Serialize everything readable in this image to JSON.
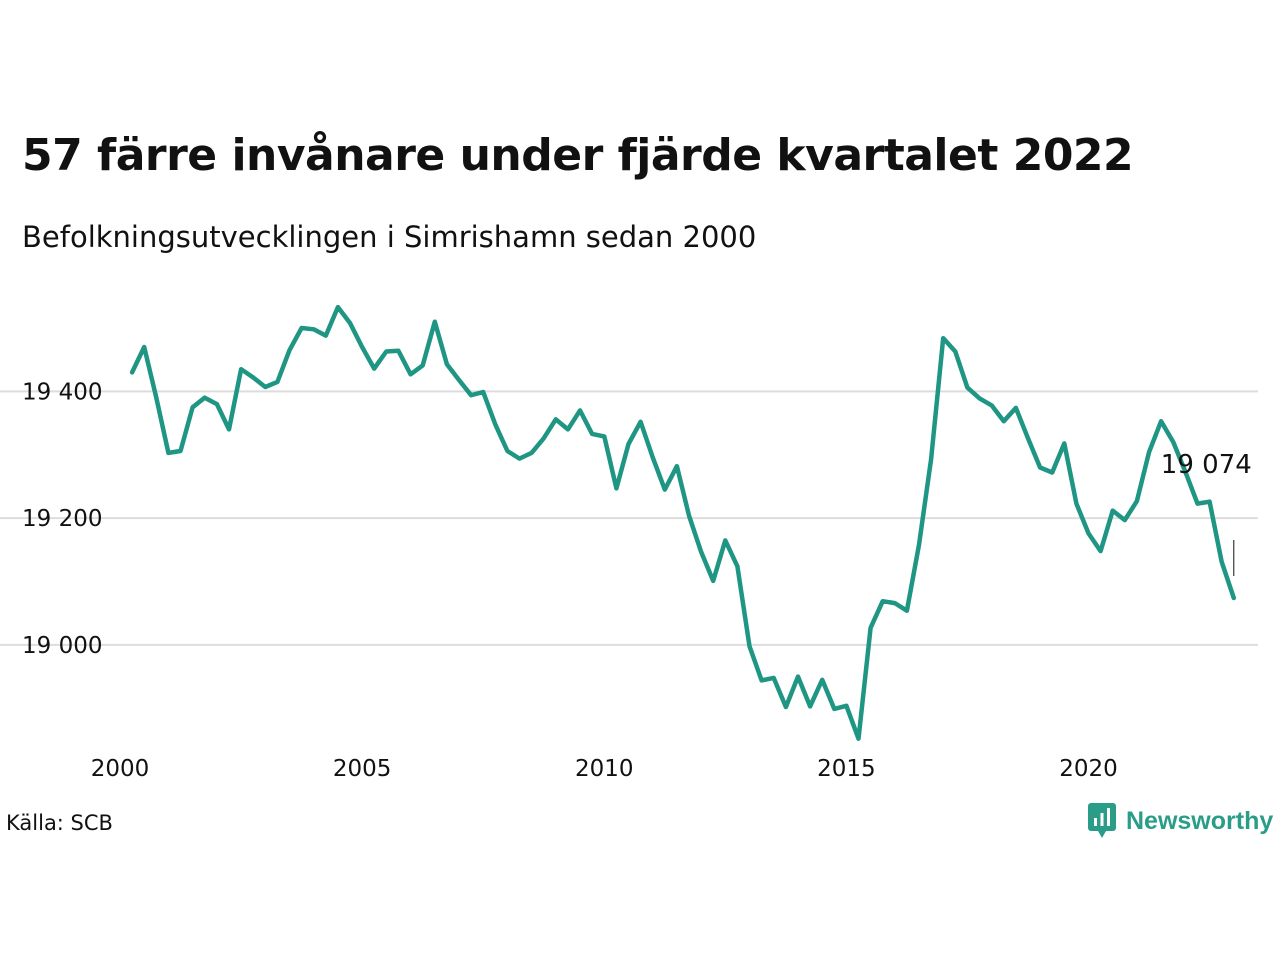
{
  "title": "57 färre invånare under fjärde kvartalet 2022",
  "subtitle": "Befolkningsutvecklingen i Simrishamn sedan 2000",
  "source": "Källa: SCB",
  "brand": {
    "name": "Newsworthy",
    "icon": "newsworthy-logo-icon",
    "color": "#2a9d88"
  },
  "chart_data": {
    "type": "line",
    "line_color": "#1f9683",
    "grid": true,
    "xlim": [
      2000,
      2023.5
    ],
    "ylim": [
      18850,
      19560
    ],
    "x_ticks": [
      2000,
      2005,
      2010,
      2015,
      2020
    ],
    "x_tick_labels": [
      "2000",
      "2005",
      "2010",
      "2015",
      "2020"
    ],
    "y_ticks": [
      19000,
      19200,
      19400
    ],
    "y_tick_labels": [
      "19 000",
      "19 200",
      "19 400"
    ],
    "end_label": "19 074",
    "series": [
      {
        "x": [
          2000.25,
          2000.5,
          2000.75,
          2001.0,
          2001.25,
          2001.5,
          2001.75,
          2002.0,
          2002.25,
          2002.5,
          2002.75,
          2003.0,
          2003.25,
          2003.5,
          2003.75,
          2004.0,
          2004.25,
          2004.5,
          2004.75,
          2005.0,
          2005.25,
          2005.5,
          2005.75,
          2006.0,
          2006.25,
          2006.5,
          2006.75,
          2007.0,
          2007.25,
          2007.5,
          2007.75,
          2008.0,
          2008.25,
          2008.5,
          2008.75,
          2009.0,
          2009.25,
          2009.5,
          2009.75,
          2010.0,
          2010.25,
          2010.5,
          2010.75,
          2011.0,
          2011.25,
          2011.5,
          2011.75,
          2012.0,
          2012.25,
          2012.5,
          2012.75,
          2013.0,
          2013.25,
          2013.5,
          2013.75,
          2014.0,
          2014.25,
          2014.5,
          2014.75,
          2015.0,
          2015.25,
          2015.5,
          2015.75,
          2016.0,
          2016.25,
          2016.5,
          2016.75,
          2017.0,
          2017.25,
          2017.5,
          2017.75,
          2018.0,
          2018.25,
          2018.5,
          2018.75,
          2019.0,
          2019.25,
          2019.5,
          2019.75,
          2020.0,
          2020.25,
          2020.5,
          2020.75,
          2021.0,
          2021.25,
          2021.5,
          2021.75,
          2022.0,
          2022.25,
          2022.5,
          2022.75,
          2023.0
        ],
        "values": [
          19430,
          19470,
          19390,
          19303,
          19306,
          19375,
          19390,
          19380,
          19340,
          19435,
          19422,
          19407,
          19415,
          19465,
          19500,
          19498,
          19488,
          19533,
          19508,
          19470,
          19436,
          19463,
          19464,
          19427,
          19441,
          19510,
          19443,
          19418,
          19394,
          19399,
          19348,
          19306,
          19294,
          19303,
          19326,
          19356,
          19340,
          19370,
          19333,
          19329,
          19247,
          19317,
          19352,
          19296,
          19245,
          19282,
          19204,
          19147,
          19101,
          19165,
          19124,
          18998,
          18944,
          18948,
          18902,
          18950,
          18903,
          18945,
          18899,
          18904,
          18852,
          19027,
          19069,
          19066,
          19054,
          19158,
          19293,
          19484,
          19463,
          19406,
          19389,
          19378,
          19353,
          19374,
          19326,
          19280,
          19272,
          19318,
          19223,
          19176,
          19148,
          19212,
          19197,
          19227,
          19304,
          19353,
          19320,
          19273,
          19223,
          19226,
          19131,
          19074
        ]
      }
    ]
  }
}
